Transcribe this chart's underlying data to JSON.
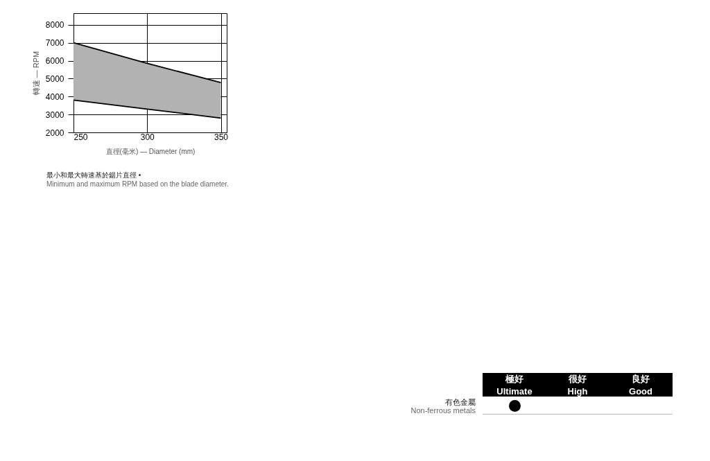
{
  "chart_data": [
    {
      "type": "line",
      "xlabel": "直徑(毫米) — Diameter (mm)",
      "ylabel": "轉速 — RPM",
      "x": [
        250,
        300,
        350
      ],
      "series": [
        {
          "type": "line",
          "color": "#000000",
          "values": [
            7000,
            5850,
            4780
          ],
          "lower": [
            3800,
            3300,
            2800
          ],
          "upper": [
            7000,
            5850,
            4780
          ]
        },
        {
          "type": "line",
          "color": "#000000",
          "values": [
            3800,
            3300,
            2800
          ]
        }
      ],
      "xlim": [
        250,
        354
      ],
      "xticks": [
        250,
        300,
        350
      ],
      "ylim": [
        2000,
        8650
      ],
      "yticks": [
        2000,
        3000,
        4000,
        5000,
        6000,
        7000,
        8000
      ],
      "grid": true,
      "annotations": [
        "最小和最大轉速基於鋸片直徑 •",
        "Minimum and maximum RPM based on the blade diameter."
      ]
    },
    {
      "type": "other",
      "annotations": [
        "極好",
        "Ultimate",
        "很好",
        "High",
        "良好",
        "Good",
        "有色金屬",
        "Non-ferrous metals"
      ]
    }
  ]
}
